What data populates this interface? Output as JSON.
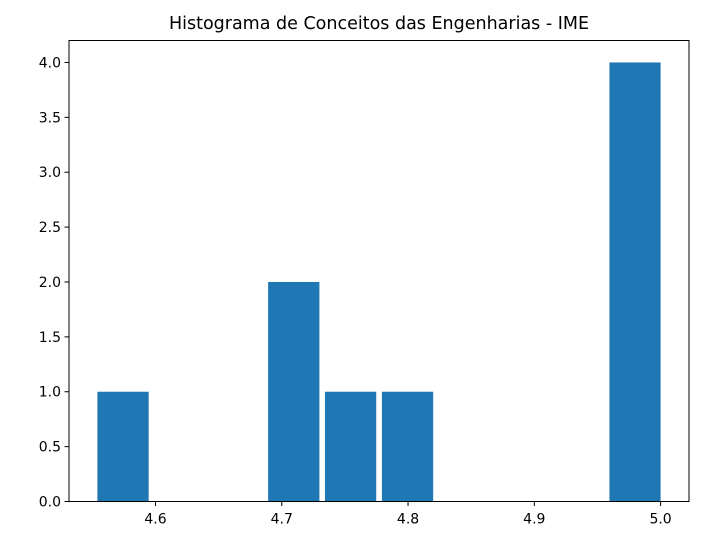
{
  "chart_data": {
    "type": "bar",
    "title": "Histograma de Conceitos das Engenharias - IME",
    "xlabel": "",
    "ylabel": "",
    "bars": [
      {
        "x0": 4.554,
        "x1": 4.5946,
        "value": 1
      },
      {
        "x0": 4.6892,
        "x1": 4.7298,
        "value": 2
      },
      {
        "x0": 4.7342,
        "x1": 4.7748,
        "value": 1
      },
      {
        "x0": 4.7793,
        "x1": 4.8199,
        "value": 1
      },
      {
        "x0": 4.9595,
        "x1": 5.0,
        "value": 4
      }
    ],
    "xlim": [
      4.5315,
      5.0225
    ],
    "ylim": [
      0,
      4.2
    ],
    "xticks": [
      4.6,
      4.7,
      4.8,
      4.9,
      5.0
    ],
    "xtick_labels": [
      "4.6",
      "4.7",
      "4.8",
      "4.9",
      "5.0"
    ],
    "yticks": [
      0,
      0.5,
      1.0,
      1.5,
      2.0,
      2.5,
      3.0,
      3.5,
      4.0
    ],
    "ytick_labels": [
      "0.0",
      "0.5",
      "1.0",
      "1.5",
      "2.0",
      "2.5",
      "3.0",
      "3.5",
      "4.0"
    ],
    "grid": false,
    "bar_color": "#1f77b4"
  }
}
